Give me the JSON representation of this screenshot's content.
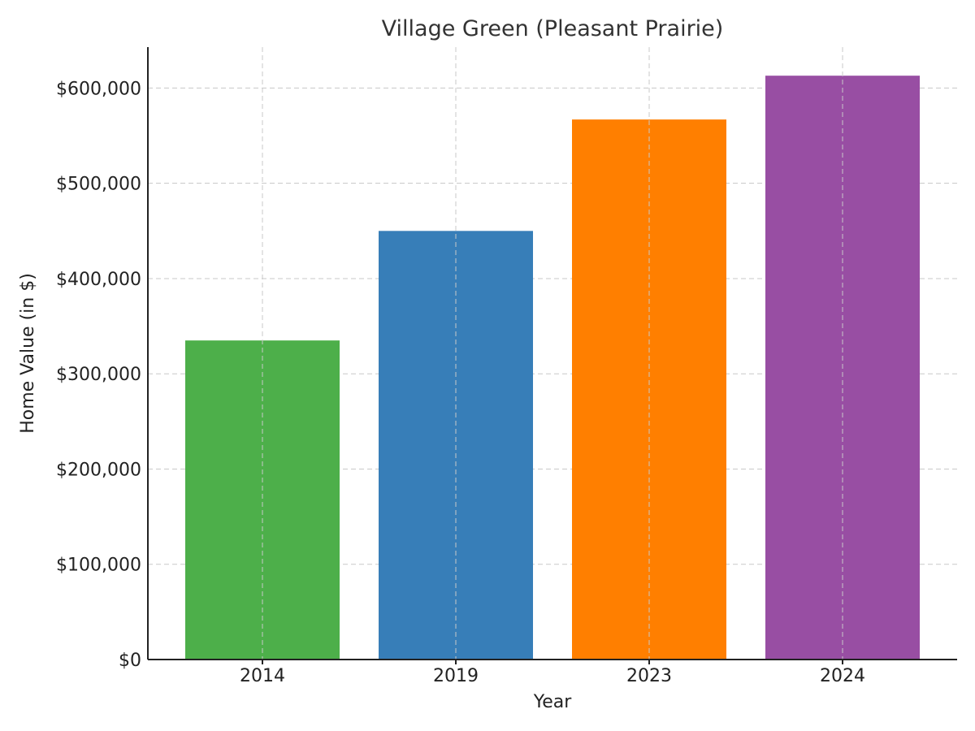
{
  "chart_data": {
    "type": "bar",
    "title": "Village Green (Pleasant Prairie)",
    "xlabel": "Year",
    "ylabel": "Home Value (in $)",
    "categories": [
      "2014",
      "2019",
      "2023",
      "2024"
    ],
    "values": [
      335000,
      450000,
      567000,
      613000
    ],
    "colors": [
      "#4daf4a",
      "#377eb8",
      "#ff7f00",
      "#984ea3"
    ],
    "ylim": [
      0,
      643000
    ],
    "yticks": [
      0,
      100000,
      200000,
      300000,
      400000,
      500000,
      600000
    ],
    "ytick_labels": [
      "$0",
      "$100,000",
      "$200,000",
      "$300,000",
      "$400,000",
      "$500,000",
      "$600,000"
    ],
    "grid": true,
    "legend": "none"
  }
}
